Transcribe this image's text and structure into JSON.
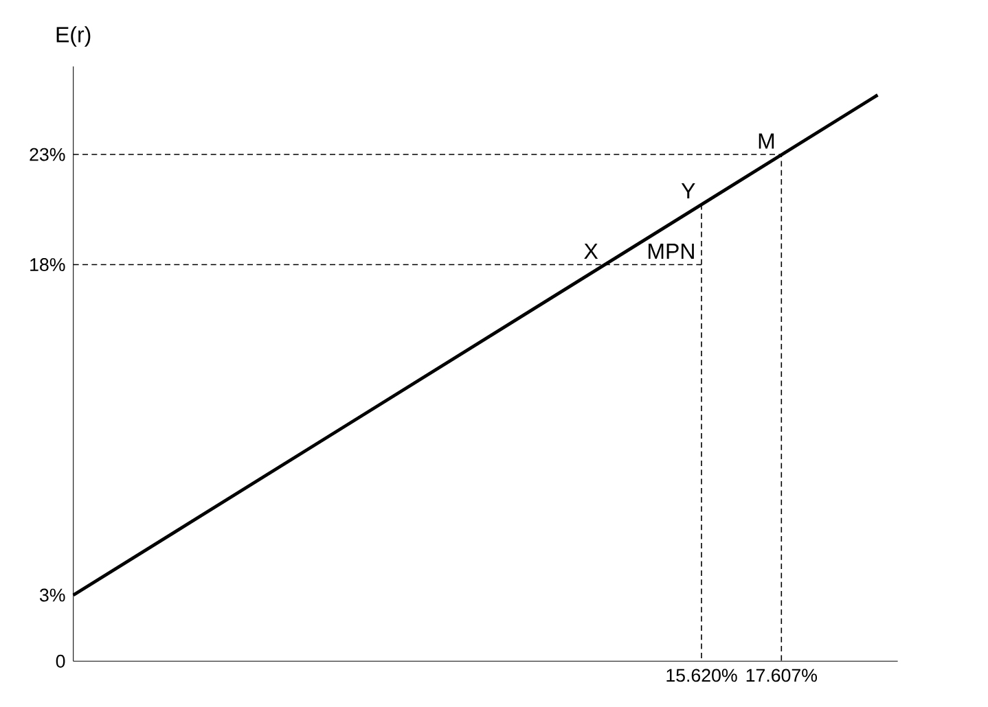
{
  "chart_data": {
    "type": "line",
    "ylabel": "E(r)",
    "xlim": [
      0,
      20.5
    ],
    "ylim": [
      0,
      27
    ],
    "xticks": [
      {
        "value": 15.62,
        "label": "15.620%"
      },
      {
        "value": 17.607,
        "label": "17.607%"
      }
    ],
    "yticks": [
      0,
      {
        "value": 3,
        "label": "3%"
      },
      {
        "value": 18,
        "label": "18%"
      },
      {
        "value": 23,
        "label": "23%"
      }
    ],
    "grid": false,
    "series": [
      {
        "color": "#000000",
        "line_style": "solid",
        "x": [
          0,
          20
        ],
        "values": [
          3,
          25.7
        ]
      },
      {
        "color": "#000000",
        "line_style": "dashed",
        "x": [
          0,
          17.607,
          17.607
        ],
        "values": [
          23,
          23,
          0
        ]
      },
      {
        "color": "#000000",
        "line_style": "dashed",
        "x": [
          0,
          15.62
        ],
        "values": [
          18,
          18
        ]
      },
      {
        "color": "#000000",
        "line_style": "dashed",
        "x": [
          15.62,
          15.62
        ],
        "values": [
          20.74,
          0
        ]
      }
    ],
    "annotations": [
      {
        "text": "X",
        "x": 13.2,
        "y": 18
      },
      {
        "text": "Y",
        "x": 15.62,
        "y": 20.74
      },
      {
        "text": "M",
        "x": 17.607,
        "y": 23
      },
      {
        "text": "MPN",
        "x": 15.62,
        "y": 18
      }
    ]
  }
}
